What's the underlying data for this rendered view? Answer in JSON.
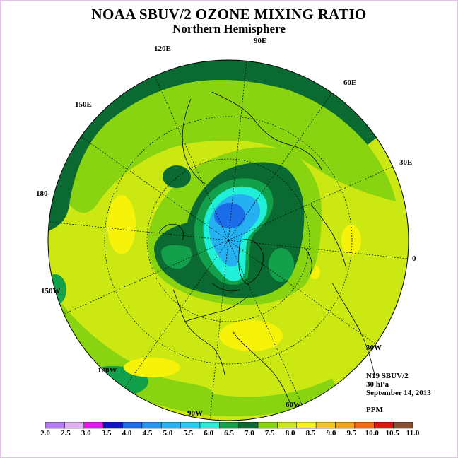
{
  "title": "NOAA SBUV/2 OZONE MIXING RATIO",
  "subtitle": "Northern Hemisphere",
  "longitude_labels": {
    "lon_90e": "90E",
    "lon_60e": "60E",
    "lon_30e": "30E",
    "lon_0": "0",
    "lon_30w": "30W",
    "lon_60w": "60W",
    "lon_90w": "90W",
    "lon_120w": "120W",
    "lon_150w": "150W",
    "lon_180": "180",
    "lon_150e": "150E",
    "lon_120e": "120E"
  },
  "info": {
    "instrument": "N19 SBUV/2",
    "level": "30 hPa",
    "date": "September 14, 2013",
    "units": "PPM"
  },
  "colorbar": {
    "labels": [
      "2.0",
      "2.5",
      "3.0",
      "3.5",
      "4.0",
      "4.5",
      "5.0",
      "5.5",
      "6.0",
      "6.5",
      "7.0",
      "7.5",
      "8.0",
      "8.5",
      "9.0",
      "9.5",
      "10.0",
      "10.5",
      "11.0"
    ],
    "colors": [
      "#b57cf5",
      "#e0aef2",
      "#ee12ee",
      "#1010d8",
      "#1a6ce8",
      "#2494ee",
      "#25b0f2",
      "#1fd0f2",
      "#20f0d8",
      "#12a04a",
      "#0a6a32",
      "#88d410",
      "#cce812",
      "#f6f20a",
      "#f2c41c",
      "#f2a21c",
      "#f26a12",
      "#ee1010",
      "#8a5030"
    ]
  },
  "colors": {
    "dark_green": "#0a6a32",
    "mid_green": "#12a04a",
    "light_green": "#88d410",
    "yellow_green": "#cce812",
    "yellow": "#f6f20a",
    "cyan": "#20f0d8",
    "light_blue": "#25b0f2",
    "blue": "#1a6ce8"
  }
}
